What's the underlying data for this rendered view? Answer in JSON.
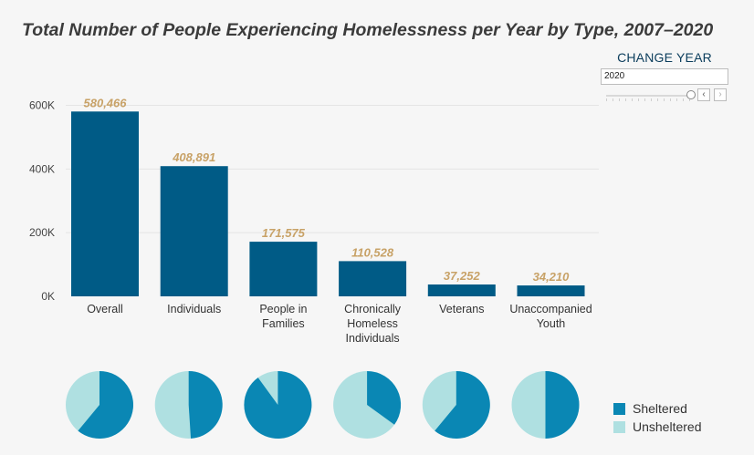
{
  "title": "Total Number of People Experiencing Homelessness per Year by Type, 2007–2020",
  "chart_data": [
    {
      "type": "bar",
      "categories": [
        [
          "Overall"
        ],
        [
          "Individuals"
        ],
        [
          "People in",
          "Families"
        ],
        [
          "Chronically",
          "Homeless",
          "Individuals"
        ],
        [
          "Veterans"
        ],
        [
          "Unaccompanied",
          "Youth"
        ]
      ],
      "values": [
        580466,
        408891,
        171575,
        110528,
        37252,
        34210
      ],
      "value_labels": [
        "580,466",
        "408,891",
        "171,575",
        "110,528",
        "37,252",
        "34,210"
      ],
      "yticks": [
        "0K",
        "200K",
        "400K",
        "600K"
      ],
      "ytick_values": [
        0,
        200000,
        400000,
        600000
      ],
      "ylim": [
        0,
        630000
      ],
      "grid": true,
      "colors": {
        "bar": "#005b86",
        "value_label": "#c8a267"
      }
    },
    {
      "type": "pie",
      "charts": [
        {
          "sheltered": 0.61,
          "unsheltered": 0.39
        },
        {
          "sheltered": 0.49,
          "unsheltered": 0.51
        },
        {
          "sheltered": 0.9,
          "unsheltered": 0.1
        },
        {
          "sheltered": 0.35,
          "unsheltered": 0.65
        },
        {
          "sheltered": 0.61,
          "unsheltered": 0.39
        },
        {
          "sheltered": 0.5,
          "unsheltered": 0.5
        }
      ],
      "colors": {
        "sheltered": "#0a87b4",
        "unsheltered": "#afe0e1"
      }
    }
  ],
  "control": {
    "title": "CHANGE YEAR",
    "year": "2020",
    "prev": "‹",
    "next": "›"
  },
  "legend": [
    {
      "label": "Sheltered",
      "color": "#0a87b4"
    },
    {
      "label": "Unsheltered",
      "color": "#afe0e1"
    }
  ]
}
